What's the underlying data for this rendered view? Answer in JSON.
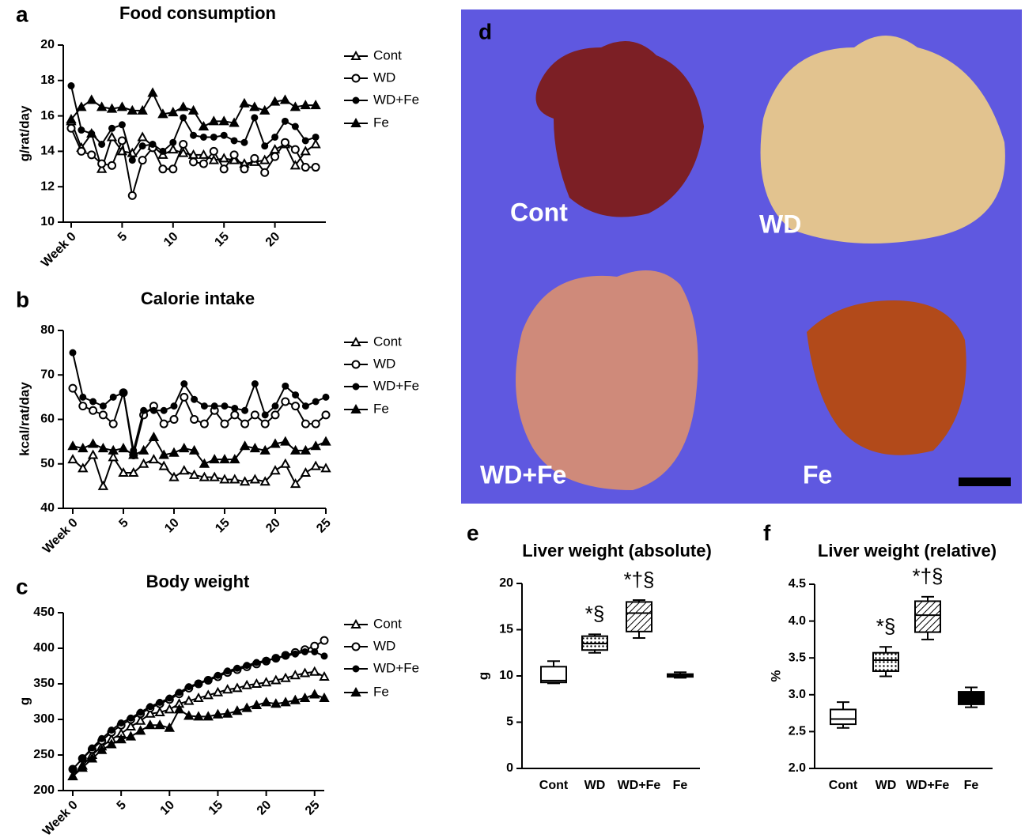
{
  "chart_data": [
    {
      "type": "line",
      "panel": "a",
      "title": "Food consumption",
      "y_label": "g/rat/day",
      "x": [
        0,
        1,
        2,
        3,
        4,
        5,
        6,
        7,
        8,
        9,
        10,
        11,
        12,
        13,
        14,
        15,
        16,
        17,
        18,
        19,
        20,
        21,
        22,
        23,
        24
      ],
      "xlim": [
        0,
        25
      ],
      "xticks": [
        {
          "value": 0,
          "label": "Week 0"
        },
        5,
        10,
        15,
        20
      ],
      "ylim": [
        10,
        20
      ],
      "yticks": [
        10,
        12,
        14,
        16,
        18,
        20
      ],
      "series": [
        {
          "name": "Cont",
          "color": "#000000",
          "marker": "triangle-open",
          "values": [
            15.7,
            14.2,
            15.0,
            13.0,
            14.8,
            14.0,
            13.9,
            14.8,
            14.3,
            13.8,
            14.1,
            13.9,
            13.8,
            13.8,
            13.5,
            13.6,
            13.5,
            13.3,
            13.4,
            13.5,
            14.1,
            14.4,
            13.2,
            14.0,
            14.4
          ]
        },
        {
          "name": "WD",
          "color": "#000000",
          "marker": "circle-open",
          "values": [
            15.3,
            14.0,
            13.8,
            13.3,
            13.2,
            14.6,
            11.5,
            13.5,
            14.2,
            13.0,
            13.0,
            14.4,
            13.4,
            13.3,
            14.0,
            13.0,
            13.8,
            13.0,
            13.6,
            12.8,
            13.7,
            14.5,
            14.1,
            13.1,
            13.1
          ]
        },
        {
          "name": "WD+Fe",
          "color": "#000000",
          "marker": "circle",
          "values": [
            17.7,
            15.2,
            15.0,
            14.4,
            15.3,
            15.5,
            13.5,
            14.3,
            14.4,
            14.0,
            14.5,
            15.9,
            14.9,
            14.8,
            14.8,
            14.9,
            14.6,
            14.5,
            15.9,
            14.3,
            14.8,
            15.7,
            15.4,
            14.6,
            14.8
          ]
        },
        {
          "name": "Fe",
          "color": "#000000",
          "marker": "triangle",
          "values": [
            15.8,
            16.5,
            16.9,
            16.5,
            16.4,
            16.5,
            16.3,
            16.3,
            17.3,
            16.1,
            16.2,
            16.5,
            16.3,
            15.4,
            15.7,
            15.7,
            15.6,
            16.7,
            16.5,
            16.3,
            16.8,
            16.9,
            16.5,
            16.6,
            16.6
          ]
        }
      ]
    },
    {
      "type": "line",
      "panel": "b",
      "title": "Calorie intake",
      "y_label": "kcal/rat/day",
      "x": [
        0,
        1,
        2,
        3,
        4,
        5,
        6,
        7,
        8,
        9,
        10,
        11,
        12,
        13,
        14,
        15,
        16,
        17,
        18,
        19,
        20,
        21,
        22,
        23,
        24,
        25
      ],
      "xlim": [
        0,
        25
      ],
      "xticks": [
        {
          "value": 0,
          "label": "Week 0"
        },
        5,
        10,
        15,
        20,
        25
      ],
      "ylim": [
        40,
        80
      ],
      "yticks": [
        40,
        50,
        60,
        70,
        80
      ],
      "series": [
        {
          "name": "Cont",
          "color": "#000000",
          "marker": "triangle-open",
          "values": [
            51,
            49,
            52,
            45,
            51.5,
            48,
            48,
            50,
            51,
            49.5,
            47,
            48.5,
            47.5,
            47,
            47,
            46.5,
            46.5,
            46,
            46.5,
            46,
            48.5,
            50,
            45.5,
            48,
            49.5,
            49
          ]
        },
        {
          "name": "WD",
          "color": "#000000",
          "marker": "circle-open",
          "values": [
            67,
            63,
            62,
            61,
            59,
            66,
            52,
            61,
            63,
            59,
            60,
            65,
            60,
            59,
            62,
            59,
            61,
            59,
            61,
            59,
            61,
            64,
            63,
            59,
            59,
            61
          ]
        },
        {
          "name": "WD+Fe",
          "color": "#000000",
          "marker": "circle",
          "values": [
            75,
            65,
            64,
            63,
            65,
            66,
            53,
            62,
            62,
            62,
            63,
            68,
            64.5,
            63,
            63,
            63,
            62.5,
            62,
            68,
            61,
            63,
            67.5,
            65.5,
            63,
            64,
            65
          ]
        },
        {
          "name": "Fe",
          "color": "#000000",
          "marker": "triangle",
          "values": [
            54,
            53.5,
            54.5,
            53.5,
            53,
            53.5,
            52,
            53,
            56,
            52,
            52.5,
            53.5,
            53,
            50,
            51,
            51,
            51,
            54,
            53.5,
            53,
            54.5,
            55,
            53,
            53,
            54,
            55
          ]
        }
      ]
    },
    {
      "type": "line",
      "panel": "c",
      "title": "Body weight",
      "y_label": "g",
      "x": [
        0,
        1,
        2,
        3,
        4,
        5,
        6,
        7,
        8,
        9,
        10,
        11,
        12,
        13,
        14,
        15,
        16,
        17,
        18,
        19,
        20,
        21,
        22,
        23,
        24,
        25,
        26
      ],
      "xlim": [
        0,
        26
      ],
      "xticks": [
        {
          "value": 0,
          "label": "Week 0"
        },
        5,
        10,
        15,
        20,
        25
      ],
      "ylim": [
        200,
        450
      ],
      "yticks": [
        200,
        250,
        300,
        350,
        400,
        450
      ],
      "series": [
        {
          "name": "Cont",
          "color": "#000000",
          "marker": "triangle-open",
          "values": [
            220,
            235,
            250,
            262,
            272,
            280,
            290,
            298,
            308,
            310,
            314,
            322,
            326,
            330,
            334,
            338,
            342,
            344,
            348,
            350,
            352,
            355,
            358,
            362,
            365,
            367,
            360
          ]
        },
        {
          "name": "WD",
          "color": "#000000",
          "marker": "circle-open",
          "values": [
            230,
            245,
            258,
            270,
            282,
            292,
            300,
            308,
            316,
            322,
            328,
            336,
            344,
            350,
            355,
            360,
            366,
            370,
            374,
            378,
            382,
            386,
            390,
            394,
            398,
            403,
            411
          ]
        },
        {
          "name": "WD+Fe",
          "color": "#000000",
          "marker": "circle",
          "values": [
            230,
            245,
            260,
            273,
            285,
            295,
            302,
            310,
            318,
            324,
            330,
            338,
            346,
            351,
            356,
            362,
            368,
            372,
            376,
            380,
            383,
            386,
            389,
            392,
            395,
            395,
            389
          ]
        },
        {
          "name": "Fe",
          "color": "#000000",
          "marker": "triangle",
          "values": [
            220,
            232,
            245,
            257,
            265,
            272,
            276,
            284,
            292,
            292,
            288,
            314,
            305,
            304,
            304,
            307,
            308,
            312,
            316,
            320,
            324,
            322,
            324,
            327,
            330,
            335,
            330
          ]
        }
      ]
    },
    {
      "type": "box",
      "panel": "e",
      "title": "Liver weight (absolute)",
      "y_label": "g",
      "categories": [
        "Cont",
        "WD",
        "WD+Fe",
        "Fe"
      ],
      "ylim": [
        0,
        20
      ],
      "yticks": [
        0,
        5,
        10,
        15,
        20
      ],
      "boxes": [
        {
          "min": 9.2,
          "q1": 9.3,
          "median": 9.5,
          "q3": 11.0,
          "max": 11.6
        },
        {
          "min": 12.5,
          "q1": 12.8,
          "median": 13.5,
          "q3": 14.3,
          "max": 14.5
        },
        {
          "min": 14.1,
          "q1": 14.8,
          "median": 16.8,
          "q3": 18.0,
          "max": 18.2
        },
        {
          "min": 9.8,
          "q1": 9.9,
          "median": 10.1,
          "q3": 10.2,
          "max": 10.4
        }
      ],
      "annotations": [
        {
          "category": "WD",
          "text": "*§"
        },
        {
          "category": "WD+Fe",
          "text": "*†§"
        }
      ]
    },
    {
      "type": "box",
      "panel": "f",
      "title": "Liver weight (relative)",
      "y_label": "%",
      "categories": [
        "Cont",
        "WD",
        "WD+Fe",
        "Fe"
      ],
      "ylim": [
        2.0,
        4.5
      ],
      "yticks": [
        {
          "value": 2.0,
          "label": "2.0"
        },
        2.5,
        {
          "value": 3.0,
          "label": "3.0"
        },
        3.5,
        {
          "value": 4.0,
          "label": "4.0"
        },
        4.5
      ],
      "boxes": [
        {
          "min": 2.55,
          "q1": 2.6,
          "median": 2.67,
          "q3": 2.8,
          "max": 2.9
        },
        {
          "min": 3.25,
          "q1": 3.32,
          "median": 3.47,
          "q3": 3.57,
          "max": 3.65
        },
        {
          "min": 3.75,
          "q1": 3.85,
          "median": 4.08,
          "q3": 4.27,
          "max": 4.33
        },
        {
          "min": 2.83,
          "q1": 2.87,
          "median": 2.93,
          "q3": 3.04,
          "max": 3.1
        }
      ],
      "annotations": [
        {
          "category": "WD",
          "text": "*§"
        },
        {
          "category": "WD+Fe",
          "text": "*†§"
        }
      ]
    }
  ],
  "photo": {
    "panel": "d",
    "labels": [
      "Cont",
      "WD",
      "WD+Fe",
      "Fe"
    ]
  }
}
